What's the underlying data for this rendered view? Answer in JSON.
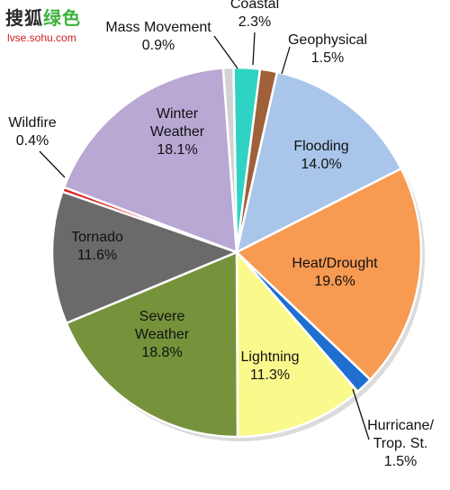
{
  "watermark": {
    "brand_black": "搜狐",
    "brand_green": "绿色",
    "url": "lvse.sohu.com"
  },
  "chart_data": {
    "type": "pie",
    "start": "Coastal slice begins near the 12 o'clock position, proceeding clockwise",
    "slices": [
      {
        "label": "Coastal",
        "value": 2.3,
        "display": "2.3%",
        "color": "#2ed3c4"
      },
      {
        "label": "Geophysical",
        "value": 1.5,
        "display": "1.5%",
        "color": "#a0603a"
      },
      {
        "label": "Flooding",
        "value": 14.0,
        "display": "14.0%",
        "color": "#a9c6ea"
      },
      {
        "label": "Heat/Drought",
        "value": 19.6,
        "display": "19.6%",
        "color": "#f79a52"
      },
      {
        "label": "Hurricane/ Trop. St.",
        "value": 1.5,
        "display": "1.5%",
        "color": "#1f6fd1"
      },
      {
        "label": "Lightning",
        "value": 11.3,
        "display": "11.3%",
        "color": "#fafa8c"
      },
      {
        "label": "Severe Weather",
        "value": 18.8,
        "display": "18.8%",
        "color": "#76933c"
      },
      {
        "label": "Tornado",
        "value": 11.6,
        "display": "11.6%",
        "color": "#6a6a6a"
      },
      {
        "label": "Wildfire",
        "value": 0.4,
        "display": "0.4%",
        "color": "#e02020"
      },
      {
        "label": "Winter Weather",
        "value": 18.1,
        "display": "18.1%",
        "color": "#b9a7d4"
      },
      {
        "label": "Mass Movement",
        "value": 0.9,
        "display": "0.9%",
        "color": "#d2d2d2"
      }
    ]
  }
}
